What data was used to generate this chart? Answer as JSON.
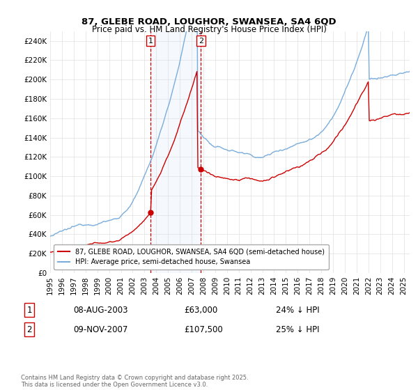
{
  "title": "87, GLEBE ROAD, LOUGHOR, SWANSEA, SA4 6QD",
  "subtitle": "Price paid vs. HM Land Registry's House Price Index (HPI)",
  "ylim": [
    0,
    250000
  ],
  "yticks": [
    0,
    20000,
    40000,
    60000,
    80000,
    100000,
    120000,
    140000,
    160000,
    180000,
    200000,
    220000,
    240000
  ],
  "hpi_color": "#7aaddb",
  "price_color": "#cc0000",
  "shading_color": "#ddeeff",
  "vline_color": "#cc0000",
  "legend_line1": "87, GLEBE ROAD, LOUGHOR, SWANSEA, SA4 6QD (semi-detached house)",
  "legend_line2": "HPI: Average price, semi-detached house, Swansea",
  "footnote": "Contains HM Land Registry data © Crown copyright and database right 2025.\nThis data is licensed under the Open Government Licence v3.0.",
  "start_year": 1995,
  "end_year": 2025,
  "sale1_date": "08-AUG-2003",
  "sale1_price": "£63,000",
  "sale1_pct": "24% ↓ HPI",
  "sale2_date": "09-NOV-2007",
  "sale2_price": "£107,500",
  "sale2_pct": "25% ↓ HPI"
}
